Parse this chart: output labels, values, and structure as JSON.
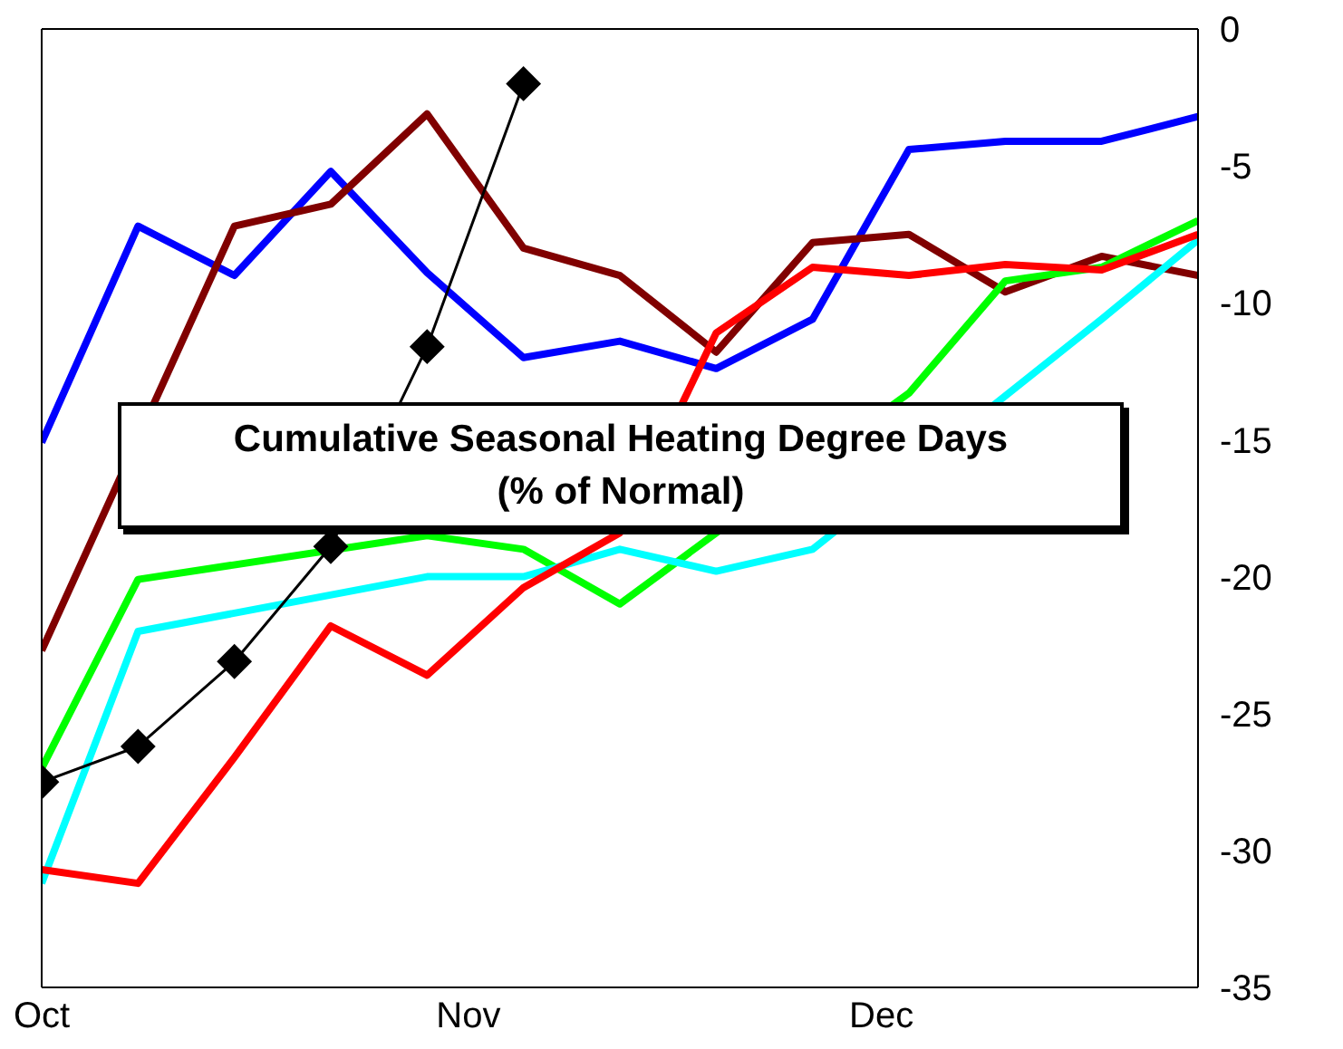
{
  "chart_data": {
    "type": "line",
    "title": "Cumulative Seasonal Heating Degree Days\n(% of Normal)",
    "x": [
      "--10-01",
      "--10-08",
      "--10-15",
      "--10-22",
      "--10-29",
      "--11-05",
      "--11-12",
      "--11-19",
      "--11-26",
      "--12-03",
      "--12-10",
      "--12-17",
      "--12-24"
    ],
    "xlim": [
      "--10-01",
      "--12-24"
    ],
    "xticks": [
      {
        "value": "--10-01",
        "label": "Oct"
      },
      {
        "value": "--11-01",
        "label": "Nov"
      },
      {
        "value": "--12-01",
        "label": "Dec"
      }
    ],
    "ylim": [
      -35,
      0
    ],
    "yticks": [
      -35,
      -30,
      -25,
      -20,
      -15,
      -10,
      -5,
      0
    ],
    "grid": false,
    "marker": "none",
    "line_style": "solid",
    "series": [
      {
        "color": "#0000ff",
        "values": [
          -15.1,
          -7.2,
          -9.0,
          -5.2,
          -8.9,
          -12.0,
          -11.4,
          -12.4,
          -10.6,
          -4.4,
          -4.1,
          -4.1,
          -3.2
        ]
      },
      {
        "color": "#800000",
        "values": [
          -22.7,
          null,
          -7.2,
          -6.4,
          -3.1,
          -8.0,
          -9.0,
          -11.8,
          -7.8,
          -7.5,
          -9.6,
          -8.3,
          -9.0
        ]
      },
      {
        "color": "#00ff00",
        "values": [
          -27.0,
          -20.1,
          null,
          null,
          -18.5,
          -19.0,
          -21.0,
          -18.4,
          null,
          -13.3,
          -9.2,
          -8.7,
          -7.0
        ]
      },
      {
        "color": "#00ffff",
        "values": [
          -31.2,
          -22.0,
          null,
          null,
          -20.0,
          -20.0,
          -19.0,
          -19.8,
          -19.0,
          null,
          null,
          -10.6,
          -7.7
        ]
      },
      {
        "color": "#ff0000",
        "values": [
          -30.7,
          -31.2,
          -26.6,
          -21.8,
          -23.6,
          -20.4,
          -18.4,
          -11.1,
          -8.7,
          -9.0,
          -8.6,
          -8.8,
          -7.5
        ]
      },
      {
        "color": "#000000",
        "marker": "diamond",
        "values": [
          -27.5,
          -26.2,
          -23.1,
          -18.9,
          -11.6,
          -2.0,
          null,
          null,
          null,
          null,
          null,
          null,
          null
        ]
      }
    ]
  }
}
